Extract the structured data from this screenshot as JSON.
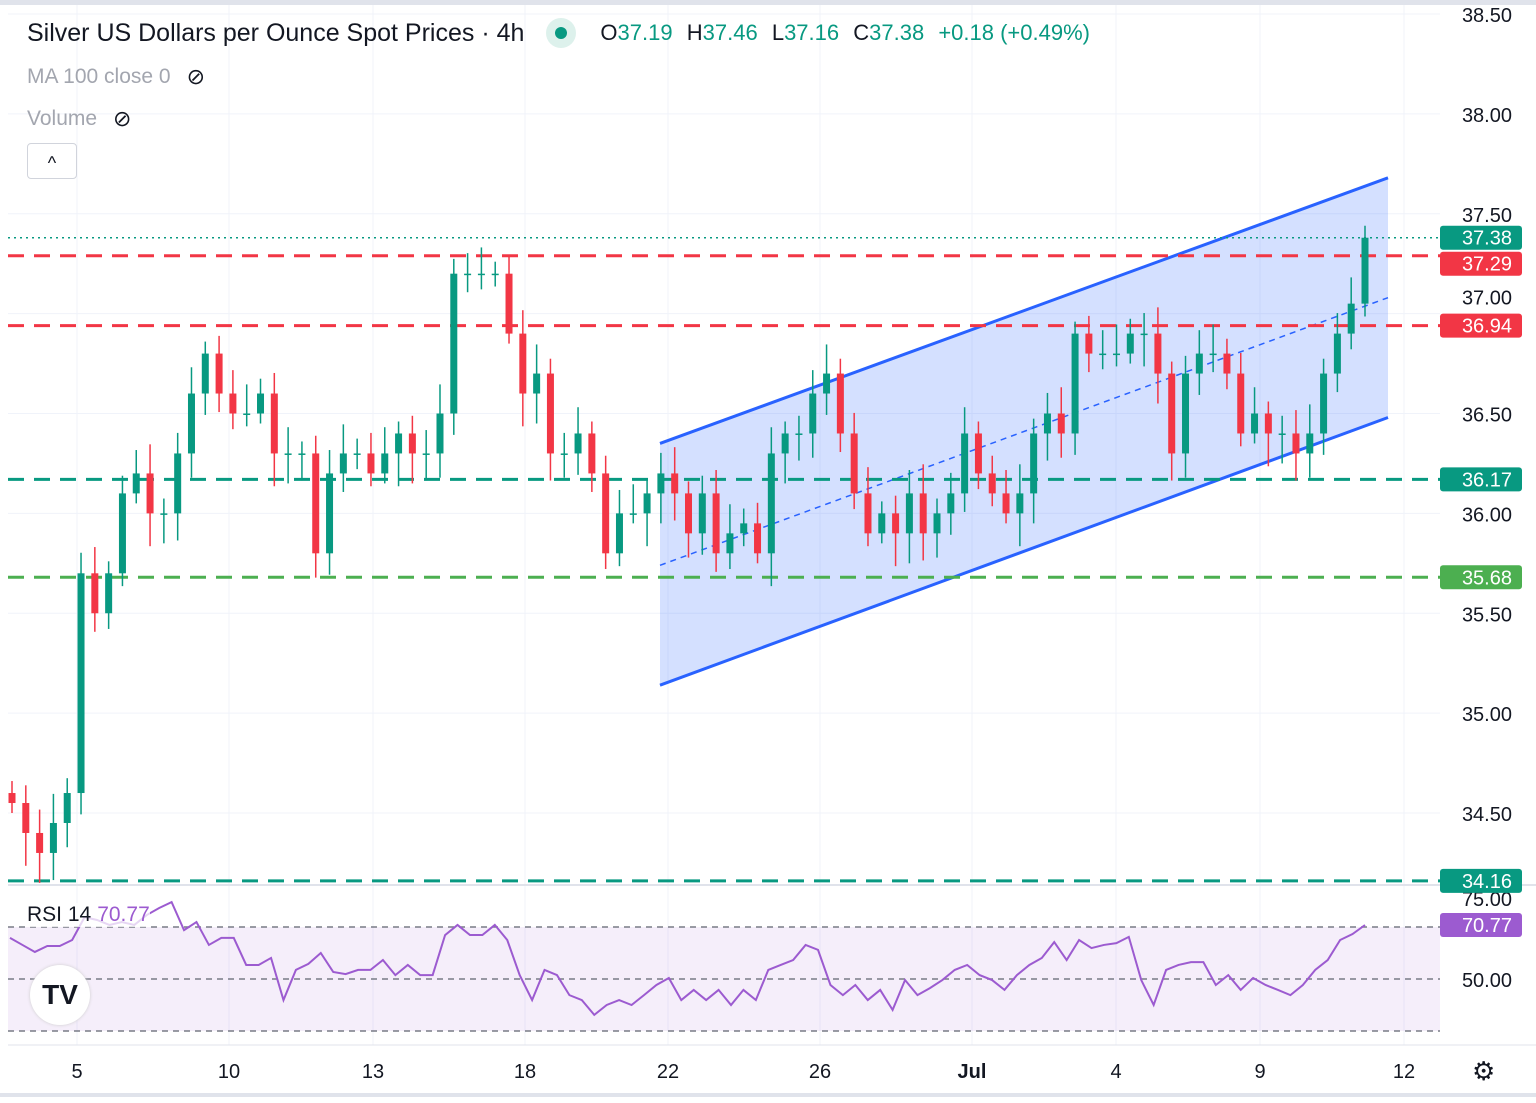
{
  "header": {
    "title": "Silver US Dollars per Ounce Spot Prices · 4h",
    "o_label": "O",
    "o": "37.19",
    "h_label": "H",
    "h": "37.46",
    "l_label": "L",
    "l": "37.16",
    "c_label": "C",
    "c": "37.38",
    "change": "+0.18 (+0.49%)"
  },
  "indicators": {
    "ma": "MA 100 close 0",
    "volume": "Volume",
    "rsi_label": "RSI 14",
    "rsi_value": "70.77"
  },
  "colors": {
    "up": "#089981",
    "down": "#f23645",
    "channel": "#2962ff",
    "rsi": "#9c5bd0",
    "support": "#089981",
    "support2": "#4caf50"
  },
  "chart_data": {
    "type": "candlestick",
    "title": "Silver US Dollars per Ounce Spot Prices · 4h",
    "ylim": [
      34.0,
      38.55
    ],
    "y_ticks": [
      "38.50",
      "38.00",
      "37.50",
      "37.00",
      "36.50",
      "36.00",
      "35.50",
      "35.00",
      "34.50"
    ],
    "x_ticks": [
      "5",
      "10",
      "13",
      "18",
      "22",
      "26",
      "Jul",
      "4",
      "9",
      "12"
    ],
    "closes": [
      34.55,
      34.4,
      34.3,
      34.45,
      34.6,
      35.7,
      35.5,
      35.7,
      36.1,
      36.2,
      36.0,
      36.0,
      36.3,
      36.6,
      36.8,
      36.6,
      36.5,
      36.5,
      36.6,
      36.3,
      36.3,
      36.3,
      35.8,
      36.2,
      36.3,
      36.3,
      36.2,
      36.3,
      36.4,
      36.3,
      36.3,
      36.5,
      37.2,
      37.2,
      37.2,
      37.2,
      36.9,
      36.6,
      36.7,
      36.3,
      36.3,
      36.4,
      36.2,
      35.8,
      36.0,
      36.0,
      36.1,
      36.2,
      36.1,
      35.9,
      36.1,
      35.8,
      35.9,
      35.95,
      35.8,
      36.3,
      36.4,
      36.4,
      36.6,
      36.7,
      36.4,
      36.1,
      35.9,
      36.0,
      35.9,
      36.1,
      35.9,
      36.0,
      36.1,
      36.4,
      36.2,
      36.1,
      36.0,
      36.1,
      36.4,
      36.5,
      36.4,
      36.9,
      36.8,
      36.8,
      36.8,
      36.9,
      36.9,
      36.7,
      36.3,
      36.7,
      36.8,
      36.8,
      36.7,
      36.4,
      36.5,
      36.4,
      36.4,
      36.3,
      36.4,
      36.7,
      36.9,
      37.05,
      37.38
    ],
    "last_price": "37.38",
    "levels": [
      {
        "price": 37.29,
        "label": "37.29",
        "color": "#f23645"
      },
      {
        "price": 36.94,
        "label": "36.94",
        "color": "#f23645"
      },
      {
        "price": 36.17,
        "label": "36.17",
        "color": "#089981"
      },
      {
        "price": 35.68,
        "label": "35.68",
        "color": "#4caf50"
      },
      {
        "price": 34.16,
        "label": "34.16",
        "color": "#089981"
      }
    ],
    "channel": {
      "upper": [
        36.35,
        37.68
      ],
      "lower": [
        35.14,
        36.48
      ],
      "mid": [
        35.74,
        37.08
      ]
    },
    "rsi": {
      "ylim": [
        20,
        80
      ],
      "levels": [
        70,
        50,
        30
      ],
      "tick_labels": [
        "75.00",
        "50.00"
      ],
      "last": "70.77",
      "values": [
        65.8,
        63.1,
        60.4,
        62.7,
        62.7,
        65,
        73.8,
        72.7,
        70.8,
        71.9,
        70.8,
        74.6,
        77.3,
        79.6,
        68.8,
        71.9,
        63.1,
        65.8,
        65.8,
        55.4,
        55.4,
        58.1,
        41.9,
        53.5,
        55.8,
        60,
        52.7,
        51.9,
        53.5,
        53.5,
        57.3,
        51.5,
        55.4,
        51.5,
        51.5,
        66.9,
        70.8,
        66.9,
        66.9,
        70.8,
        65,
        51.5,
        41.9,
        53.5,
        51.5,
        43.8,
        41.9,
        36.2,
        40,
        41.9,
        40,
        43.8,
        47.7,
        50.4,
        41.9,
        45.8,
        41.9,
        45.8,
        40,
        45.8,
        41.9,
        53.5,
        55.4,
        57.3,
        63.1,
        61.2,
        47.7,
        43.8,
        47.7,
        41.9,
        45.8,
        38.1,
        49.6,
        43.8,
        46.5,
        49.6,
        53.5,
        55.4,
        51.5,
        49.6,
        45.8,
        51.5,
        55.4,
        58.1,
        64.2,
        57.3,
        65,
        61.9,
        63.1,
        63.8,
        66.2,
        49.6,
        40,
        53.5,
        55.4,
        56.5,
        56.5,
        47.7,
        51.5,
        45.8,
        50.4,
        47.7,
        45.8,
        43.8,
        47.7,
        53.5,
        57.3,
        65,
        67.3,
        70.77
      ]
    }
  }
}
